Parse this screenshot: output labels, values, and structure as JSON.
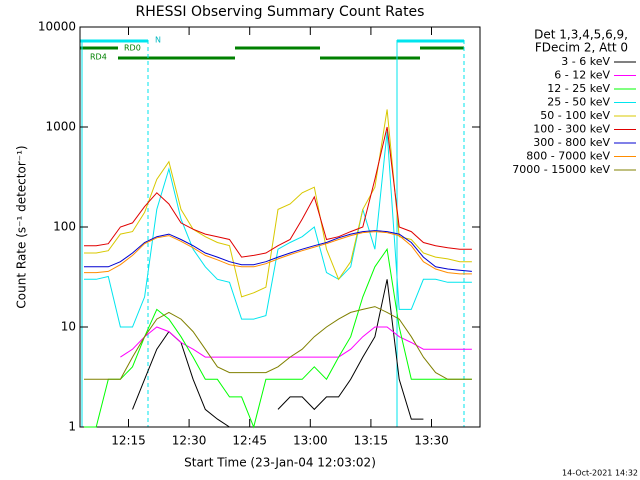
{
  "chart_data": {
    "type": "line",
    "title": "RHESSI Observing Summary Count Rates",
    "y_label": "Count Rate (s⁻¹ detector⁻¹)",
    "x_label": "Start Time (23-Jan-04 12:03:02)",
    "footer": "14-Oct-2021 14:32",
    "legend_title": [
      "Det 1,3,4,5,6,9,",
      "FDecim 2, Att 0"
    ],
    "annotations": [
      "N",
      "RD0",
      "RD4"
    ],
    "log_y": true,
    "xlim": [
      "12:03",
      "13:42"
    ],
    "xticks": [
      "12:15",
      "12:30",
      "12:45",
      "13:00",
      "13:15",
      "13:30"
    ],
    "ylim": [
      1,
      10000
    ],
    "yticks": [
      1,
      10,
      100,
      1000,
      10000
    ],
    "x": [
      "12:04",
      "12:07",
      "12:10",
      "12:13",
      "12:16",
      "12:19",
      "12:22",
      "12:25",
      "12:28",
      "12:31",
      "12:34",
      "12:37",
      "12:40",
      "12:43",
      "12:46",
      "12:49",
      "12:52",
      "12:55",
      "12:58",
      "13:01",
      "13:04",
      "13:07",
      "13:10",
      "13:13",
      "13:16",
      "13:19",
      "13:22",
      "13:25",
      "13:28",
      "13:31",
      "13:34",
      "13:37",
      "13:40"
    ],
    "series": [
      {
        "name": "3 - 6 keV",
        "color": "#000000",
        "values": [
          null,
          null,
          null,
          null,
          1.5,
          3,
          6,
          9,
          7,
          3,
          1.5,
          1.2,
          1,
          1,
          null,
          null,
          1.5,
          2,
          2,
          1.5,
          2,
          2,
          3,
          5,
          8,
          30,
          3,
          1.2,
          1.2,
          null,
          null,
          null,
          null
        ]
      },
      {
        "name": "6 - 12 keV",
        "color": "#ff00ff",
        "values": [
          null,
          null,
          null,
          5,
          6,
          8,
          10,
          9,
          7,
          6,
          5,
          5,
          5,
          5,
          5,
          5,
          5,
          5,
          5,
          5,
          5,
          5,
          6,
          8,
          10,
          10,
          8,
          7,
          6,
          6,
          6,
          6,
          6
        ]
      },
      {
        "name": "12 - 25 keV",
        "color": "#00ff00",
        "values": [
          1,
          1,
          3,
          3,
          4,
          8,
          15,
          12,
          8,
          5,
          3,
          3,
          2,
          2,
          1,
          3,
          3,
          3,
          3,
          4,
          3,
          5,
          8,
          20,
          40,
          60,
          10,
          3,
          3,
          3,
          3,
          3,
          3
        ]
      },
      {
        "name": "25 - 50 keV",
        "color": "#00e5ee",
        "values": [
          30,
          30,
          32,
          10,
          10,
          20,
          150,
          380,
          120,
          60,
          40,
          30,
          28,
          12,
          12,
          13,
          60,
          70,
          80,
          100,
          35,
          30,
          40,
          150,
          60,
          900,
          15,
          15,
          30,
          30,
          28,
          28,
          28
        ]
      },
      {
        "name": "50 - 100 keV",
        "color": "#d8c800",
        "values": [
          55,
          55,
          58,
          85,
          90,
          140,
          300,
          450,
          150,
          95,
          80,
          70,
          65,
          20,
          22,
          25,
          150,
          170,
          220,
          250,
          60,
          30,
          45,
          150,
          250,
          1500,
          80,
          75,
          55,
          50,
          48,
          45,
          45
        ]
      },
      {
        "name": "100 - 300 keV",
        "color": "#e00000",
        "values": [
          65,
          65,
          68,
          100,
          110,
          160,
          220,
          170,
          110,
          95,
          85,
          80,
          75,
          50,
          52,
          55,
          65,
          75,
          120,
          200,
          75,
          80,
          90,
          100,
          300,
          1000,
          100,
          90,
          70,
          65,
          62,
          60,
          60
        ]
      },
      {
        "name": "300 - 800 keV",
        "color": "#0000d0",
        "values": [
          40,
          40,
          40,
          45,
          55,
          70,
          80,
          85,
          75,
          65,
          55,
          50,
          45,
          42,
          42,
          45,
          50,
          55,
          60,
          65,
          70,
          78,
          85,
          90,
          92,
          90,
          85,
          70,
          50,
          40,
          38,
          37,
          36
        ]
      },
      {
        "name": "800 - 7000 keV",
        "color": "#ff8c00",
        "values": [
          35,
          35,
          36,
          42,
          52,
          68,
          78,
          82,
          72,
          62,
          52,
          47,
          42,
          40,
          40,
          43,
          48,
          53,
          58,
          63,
          68,
          75,
          82,
          88,
          90,
          88,
          82,
          65,
          45,
          38,
          35,
          34,
          34
        ]
      },
      {
        "name": "7000 - 15000 keV",
        "color": "#808000",
        "values": [
          3,
          3,
          3,
          3,
          5,
          8,
          12,
          14,
          12,
          9,
          6,
          4,
          3.5,
          3.5,
          3.5,
          3.5,
          4,
          5,
          6,
          8,
          10,
          12,
          14,
          15,
          16,
          14,
          12,
          8,
          5,
          3.5,
          3,
          3,
          3
        ]
      }
    ]
  }
}
